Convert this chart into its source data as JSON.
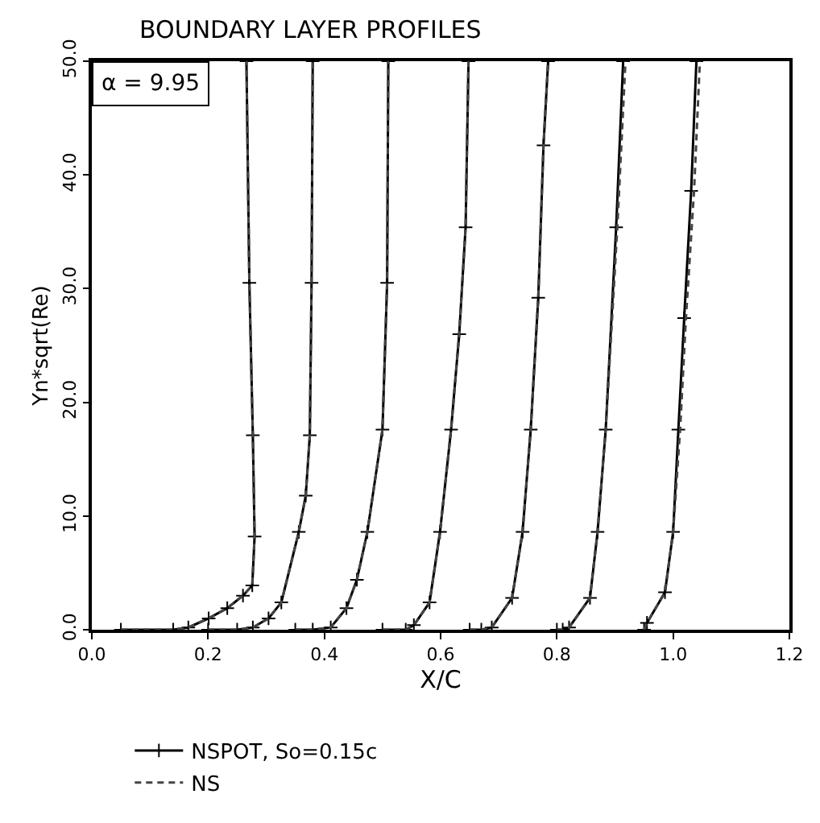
{
  "chart_data": {
    "type": "line",
    "title": "BOUNDARY LAYER PROFILES",
    "xlabel": "X/C",
    "ylabel": "Yn*sqrt(Re)",
    "annotations": [
      "α = 9.95"
    ],
    "xlim": [
      0,
      1.2
    ],
    "xticks": [
      {
        "value": 0,
        "label": "0.0"
      },
      0.2,
      0.4,
      0.6,
      0.8,
      {
        "value": 1,
        "label": "1.0"
      },
      1.2
    ],
    "ylim": [
      0,
      50
    ],
    "yticks": [
      {
        "value": 0,
        "label": "0.0"
      },
      {
        "value": 10,
        "label": "10.0"
      },
      {
        "value": 20,
        "label": "20.0"
      },
      {
        "value": 30,
        "label": "30.0"
      },
      {
        "value": 40,
        "label": "40.0"
      },
      {
        "value": 50,
        "label": "50.0"
      }
    ],
    "grid": false,
    "legend": "bottom left",
    "series": [
      {
        "name": "NSPOT, So=0.15c",
        "color": "#000000",
        "line_style": "solid",
        "marker": "cross",
        "x": [
          0.05,
          0.14,
          0.166,
          0.201,
          0.233,
          0.26,
          0.276,
          0.28,
          0.277,
          0.271,
          0.266,
          null,
          0.2,
          0.25,
          0.277,
          0.304,
          0.326,
          0.356,
          0.368,
          0.375,
          0.378,
          0.38,
          null,
          0.35,
          0.38,
          0.411,
          0.438,
          0.456,
          0.474,
          0.5,
          0.508,
          0.51,
          null,
          0.5,
          0.54,
          0.554,
          0.581,
          0.599,
          0.618,
          0.632,
          0.643,
          0.648,
          null,
          0.65,
          0.67,
          0.688,
          0.723,
          0.741,
          0.755,
          0.768,
          0.777,
          0.785,
          null,
          0.8,
          0.81,
          0.821,
          0.857,
          0.87,
          0.884,
          0.902,
          0.914,
          null,
          0.95,
          0.955,
          0.986,
          1.0,
          1.009,
          1.019,
          1.031,
          1.04
        ],
        "values": [
          0,
          0,
          0.2,
          1.0,
          1.9,
          3.0,
          3.9,
          8.2,
          17.1,
          30.5,
          50,
          null,
          0,
          0,
          0.2,
          1.0,
          2.4,
          8.6,
          11.8,
          17.1,
          30.5,
          50,
          null,
          0,
          0,
          0.2,
          1.9,
          4.4,
          8.6,
          17.6,
          30.5,
          50,
          null,
          0,
          0,
          0.4,
          2.4,
          8.6,
          17.6,
          26,
          35.4,
          50,
          null,
          0,
          0,
          0.2,
          2.8,
          8.6,
          17.6,
          29.2,
          42.6,
          50,
          null,
          0,
          0,
          0.2,
          2.8,
          8.6,
          17.6,
          35.4,
          50,
          null,
          0,
          0.6,
          3.3,
          8.6,
          17.6,
          27.4,
          38.6,
          50
        ]
      },
      {
        "name": "NS",
        "color": "#444444",
        "line_style": "dashed",
        "marker": "none",
        "x": [
          0.05,
          0.14,
          0.166,
          0.201,
          0.233,
          0.26,
          0.276,
          0.28,
          0.277,
          0.271,
          0.266,
          null,
          0.2,
          0.25,
          0.277,
          0.304,
          0.326,
          0.356,
          0.368,
          0.375,
          0.378,
          0.38,
          null,
          0.35,
          0.38,
          0.411,
          0.438,
          0.456,
          0.474,
          0.5,
          0.508,
          0.51,
          null,
          0.5,
          0.54,
          0.554,
          0.581,
          0.599,
          0.618,
          0.632,
          0.643,
          0.648,
          null,
          0.65,
          0.67,
          0.688,
          0.723,
          0.741,
          0.755,
          0.768,
          0.777,
          0.785,
          null,
          0.8,
          0.81,
          0.821,
          0.857,
          0.87,
          0.884,
          0.904,
          0.918,
          null,
          0.95,
          0.955,
          0.986,
          1.0,
          1.012,
          1.022,
          1.036,
          1.046
        ],
        "values": [
          0,
          0,
          0.2,
          1.0,
          1.9,
          3.0,
          3.9,
          8.2,
          17.1,
          30.5,
          50,
          null,
          0,
          0,
          0.2,
          1.0,
          2.4,
          8.6,
          11.8,
          17.1,
          30.5,
          50,
          null,
          0,
          0,
          0.2,
          1.9,
          4.4,
          8.6,
          17.6,
          30.5,
          50,
          null,
          0,
          0,
          0.4,
          2.4,
          8.6,
          17.6,
          26,
          35.4,
          50,
          null,
          0,
          0,
          0.2,
          2.8,
          8.6,
          17.6,
          29.2,
          42.6,
          50,
          null,
          0,
          0,
          0.2,
          2.8,
          8.6,
          17.6,
          35.4,
          50,
          null,
          0,
          0.6,
          3.3,
          8.6,
          17.6,
          27.4,
          38.6,
          50
        ]
      }
    ]
  }
}
